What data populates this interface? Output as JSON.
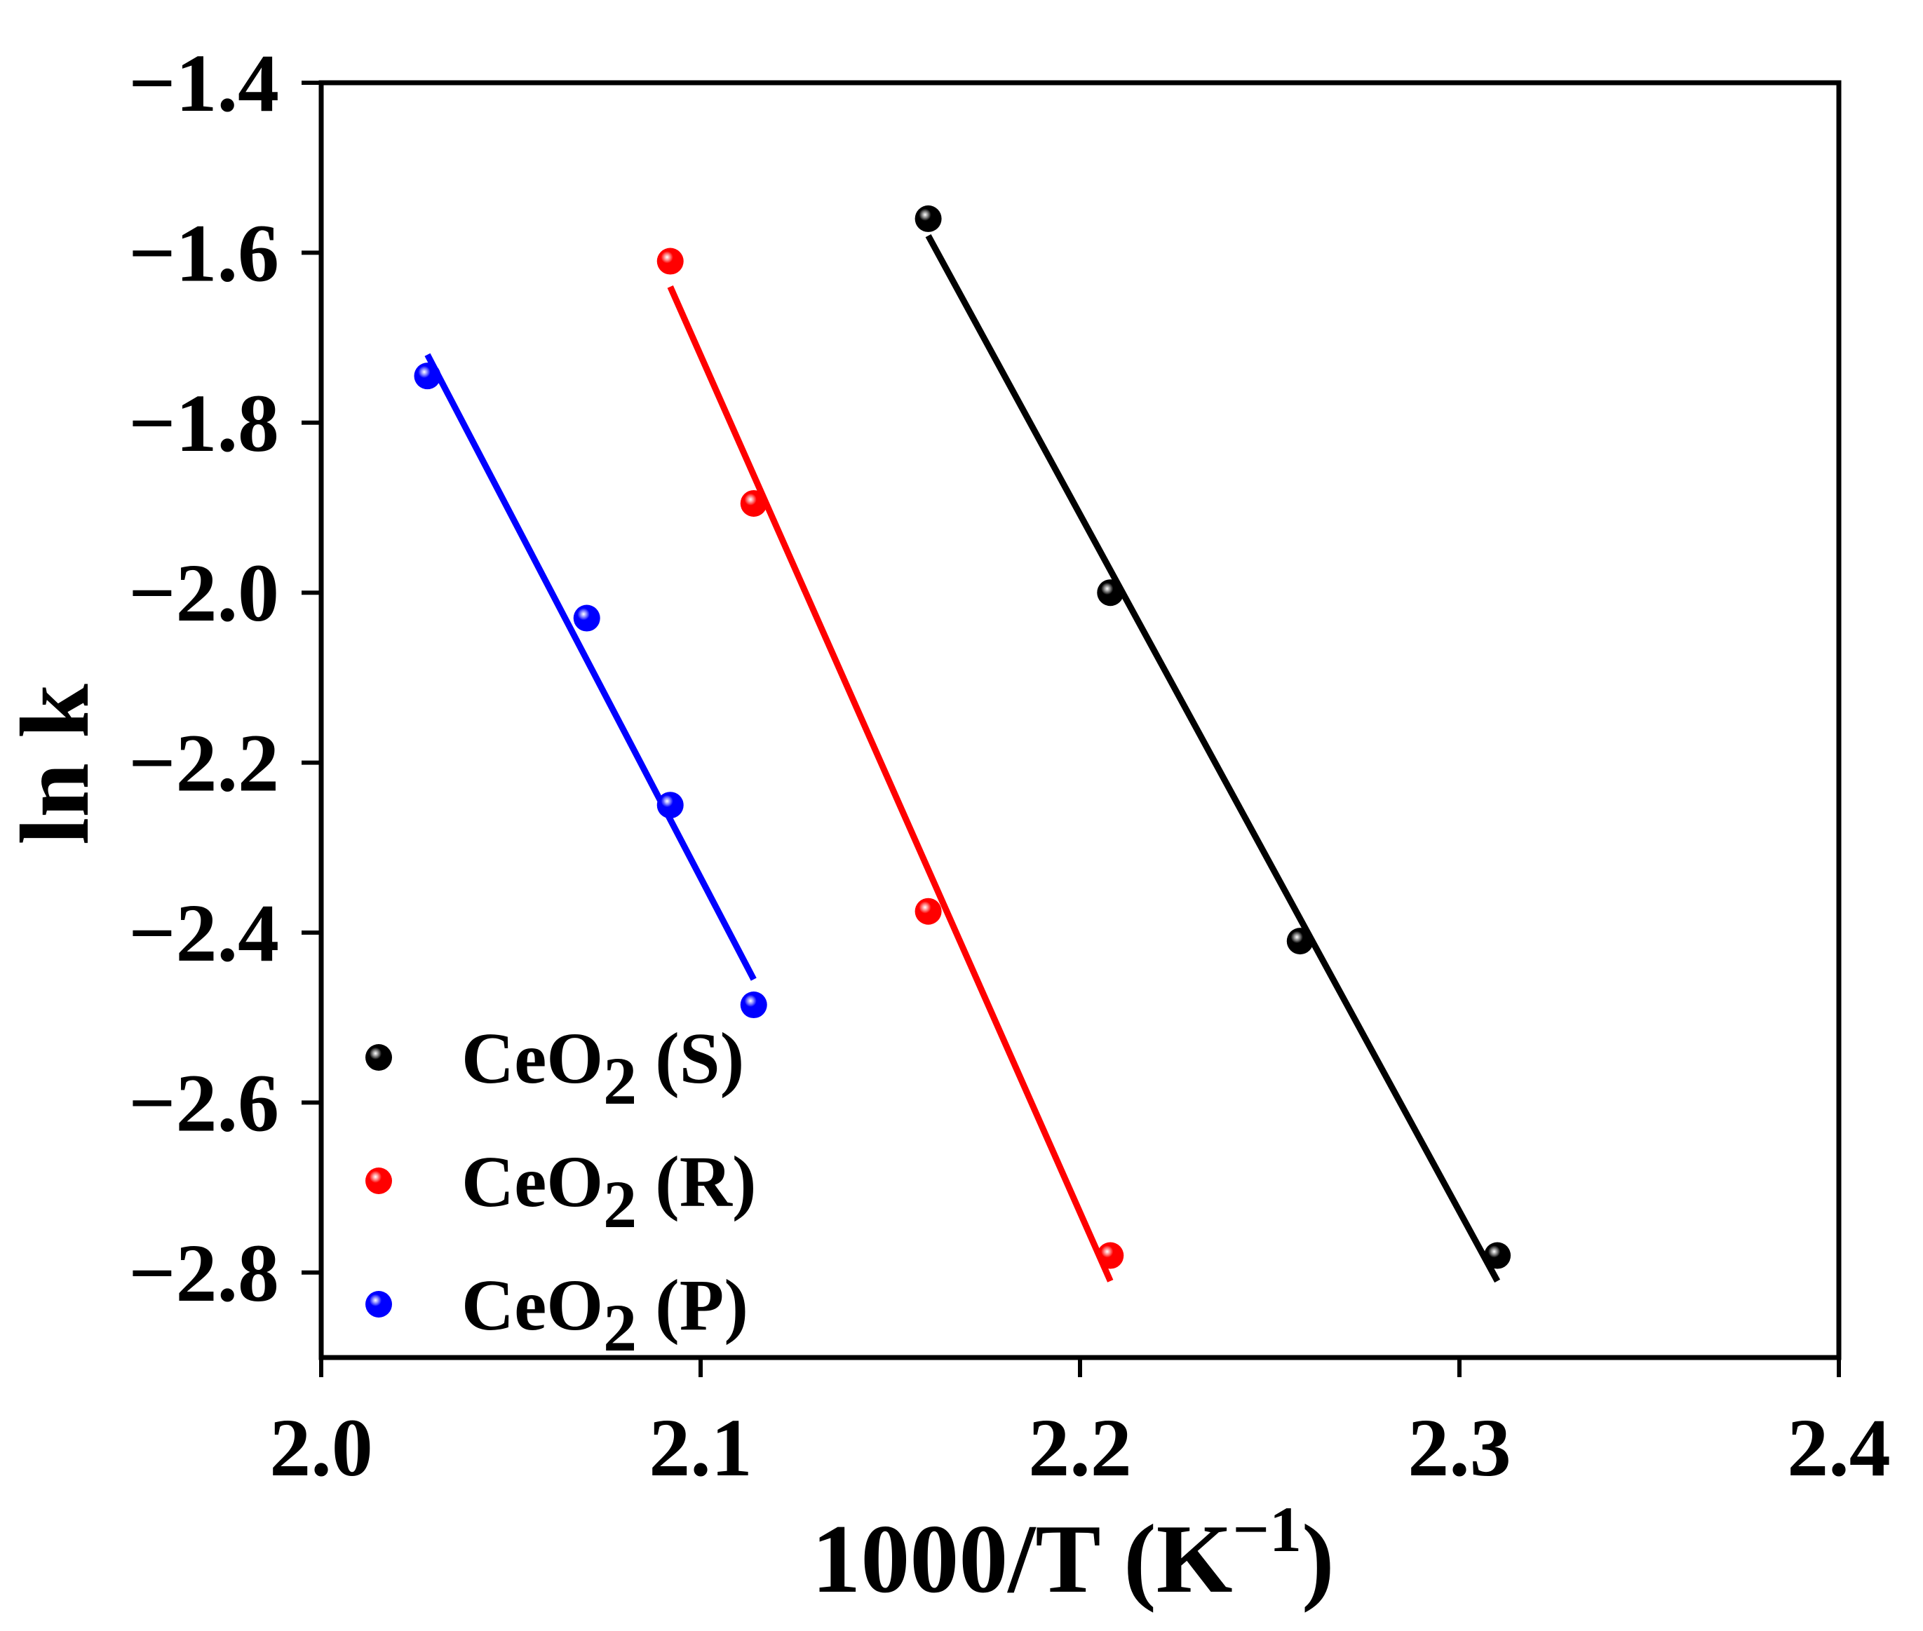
{
  "chart_data": {
    "type": "scatter",
    "title": "",
    "xlabel": "1000/T (K⁻¹)",
    "xlabel_base": "1000/T (K",
    "xlabel_sup": "−1",
    "xlabel_end": ")",
    "ylabel": "ln k",
    "xlim": [
      2.0,
      2.4
    ],
    "ylim": [
      -2.9,
      -1.4
    ],
    "xticks": [
      2.0,
      2.1,
      2.2,
      2.3,
      2.4
    ],
    "yticks": [
      -2.8,
      -2.6,
      -2.4,
      -2.2,
      -2.0,
      -1.8,
      -1.6,
      -1.4
    ],
    "xtick_labels": [
      "2.0",
      "2.1",
      "2.2",
      "2.3",
      "2.4"
    ],
    "ytick_labels": [
      "−2.8",
      "−2.6",
      "−2.4",
      "−2.2",
      "−2.0",
      "−1.8",
      "−1.6",
      "−1.4"
    ],
    "grid": false,
    "legend_position": "bottom-left",
    "series": [
      {
        "name": "CeO2 (S)",
        "label_base": "CeO",
        "label_sub": "2",
        "label_tail": " (S)",
        "color": "#000000",
        "x": [
          2.16,
          2.208,
          2.258,
          2.31
        ],
        "y": [
          -1.56,
          -2.0,
          -2.41,
          -2.78
        ],
        "fit": {
          "x": [
            2.16,
            2.31
          ],
          "y": [
            -1.58,
            -2.81
          ]
        }
      },
      {
        "name": "CeO2 (R)",
        "label_base": "CeO",
        "label_sub": "2",
        "label_tail": " (R)",
        "color": "#ff0000",
        "x": [
          2.092,
          2.114,
          2.16,
          2.208
        ],
        "y": [
          -1.61,
          -1.895,
          -2.375,
          -2.78
        ],
        "fit": {
          "x": [
            2.092,
            2.208
          ],
          "y": [
            -1.64,
            -2.81
          ]
        }
      },
      {
        "name": "CeO2 (P)",
        "label_base": "CeO",
        "label_sub": "2",
        "label_tail": " (P)",
        "color": "#0000ff",
        "x": [
          2.028,
          2.07,
          2.092,
          2.114
        ],
        "y": [
          -1.745,
          -2.03,
          -2.25,
          -2.485
        ],
        "fit": {
          "x": [
            2.028,
            2.114
          ],
          "y": [
            -1.72,
            -2.455
          ]
        }
      }
    ]
  }
}
